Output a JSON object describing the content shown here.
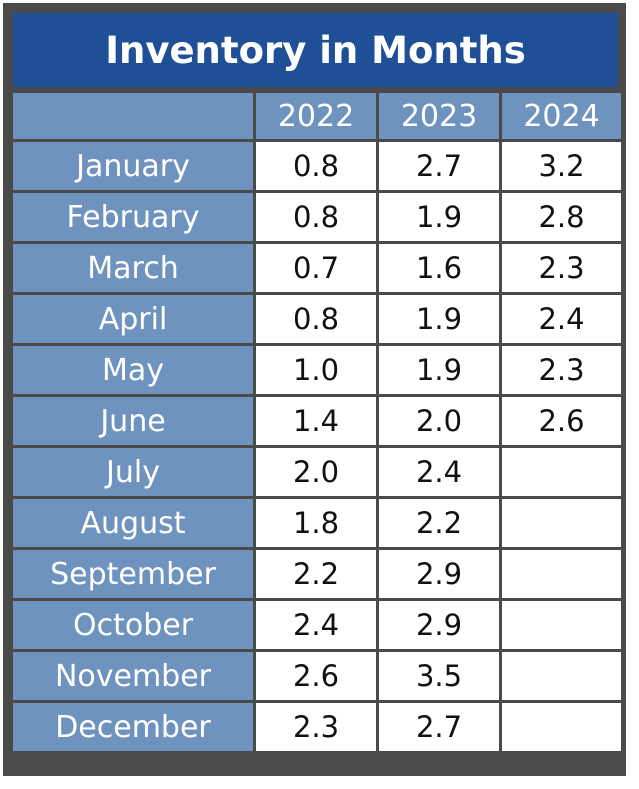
{
  "chart_data": {
    "type": "table",
    "title": "Inventory in Months",
    "columns": [
      "",
      "2022",
      "2023",
      "2024"
    ],
    "rows": [
      {
        "label": "January",
        "values": [
          "0.8",
          "2.7",
          "3.2"
        ]
      },
      {
        "label": "February",
        "values": [
          "0.8",
          "1.9",
          "2.8"
        ]
      },
      {
        "label": "March",
        "values": [
          "0.7",
          "1.6",
          "2.3"
        ]
      },
      {
        "label": "April",
        "values": [
          "0.8",
          "1.9",
          "2.4"
        ]
      },
      {
        "label": "May",
        "values": [
          "1.0",
          "1.9",
          "2.3"
        ]
      },
      {
        "label": "June",
        "values": [
          "1.4",
          "2.0",
          "2.6"
        ]
      },
      {
        "label": "July",
        "values": [
          "2.0",
          "2.4",
          ""
        ]
      },
      {
        "label": "August",
        "values": [
          "1.8",
          "2.2",
          ""
        ]
      },
      {
        "label": "September",
        "values": [
          "2.2",
          "2.9",
          ""
        ]
      },
      {
        "label": "October",
        "values": [
          "2.4",
          "2.9",
          ""
        ]
      },
      {
        "label": "November",
        "values": [
          "2.6",
          "3.5",
          ""
        ]
      },
      {
        "label": "December",
        "values": [
          "2.3",
          "2.7",
          ""
        ]
      }
    ]
  },
  "colors": {
    "frame": "#4a4a4a",
    "title_bg": "#1f4f97",
    "header_bg": "#6f93bf",
    "cell_bg": "#ffffff"
  }
}
